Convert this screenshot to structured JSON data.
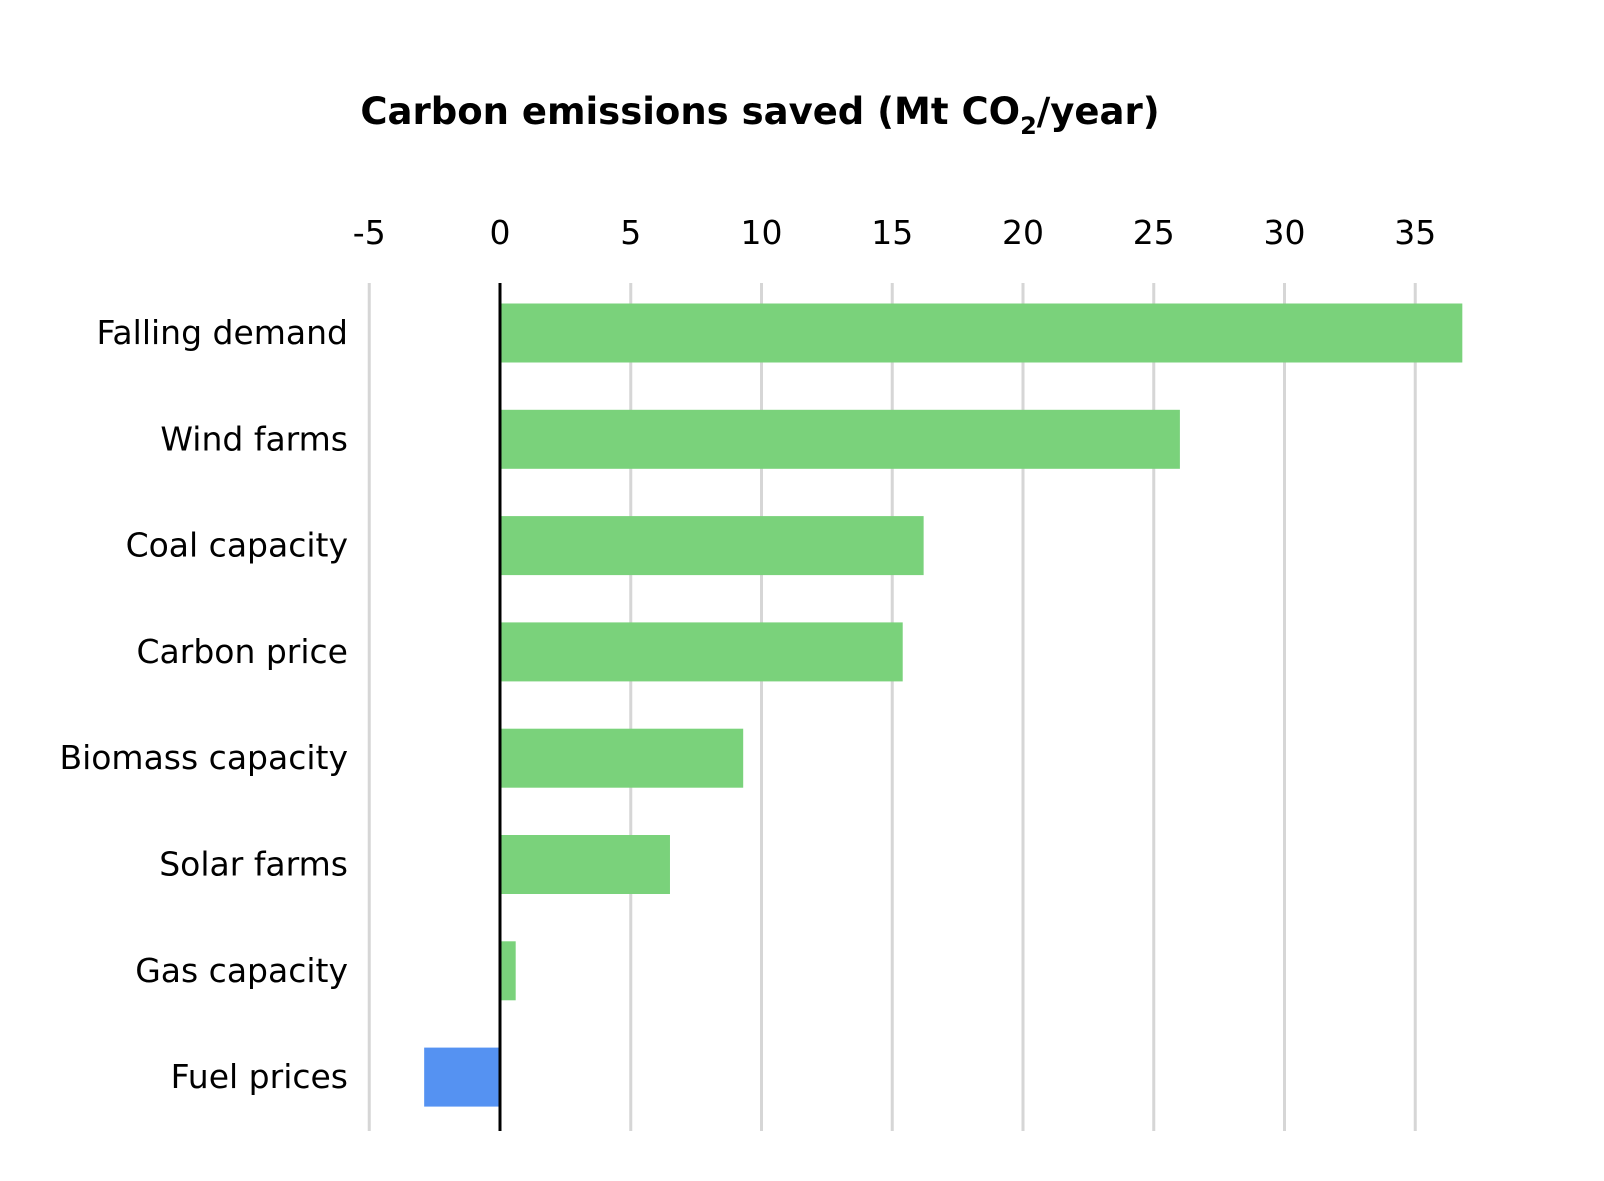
{
  "chart_data": {
    "type": "bar",
    "orientation": "horizontal",
    "title": {
      "main": "Carbon emissions saved (Mt CO",
      "subscript": "2",
      "suffix": "/year)"
    },
    "categories": [
      "Falling demand",
      "Wind farms",
      "Coal capacity",
      "Carbon price",
      "Biomass capacity",
      "Solar farms",
      "Gas capacity",
      "Fuel prices"
    ],
    "values": [
      36.8,
      26.0,
      16.2,
      15.4,
      9.3,
      6.5,
      0.6,
      -2.9
    ],
    "xlim": [
      -5,
      37
    ],
    "xticks": [
      -5,
      0,
      5,
      10,
      15,
      20,
      25,
      30,
      35
    ],
    "xtick_labels": [
      "-5",
      "0",
      "5",
      "10",
      "15",
      "20",
      "25",
      "30",
      "35"
    ],
    "grid": true,
    "axis_position": "top",
    "colors": {
      "positive": "#7ad27b",
      "negative": "#5592f2",
      "grid": "#d6d6d6",
      "zero_line": "#000000"
    }
  }
}
